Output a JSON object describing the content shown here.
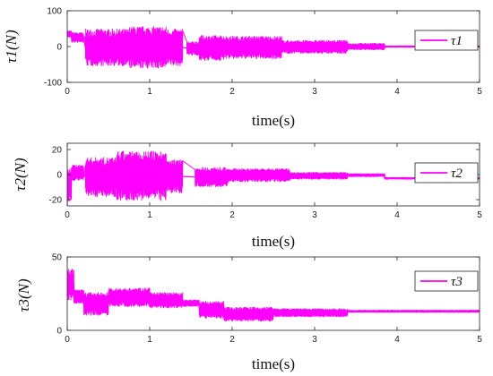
{
  "chart_data": [
    {
      "type": "line",
      "series": [
        {
          "name": "τ1",
          "color": "#ff00ff"
        }
      ],
      "ylabel": "τ1(N)",
      "xlabel": "time(s)",
      "xlim": [
        0,
        5
      ],
      "ylim": [
        -100,
        100
      ],
      "xticks": [
        "0",
        "1",
        "2",
        "3",
        "4",
        "5"
      ],
      "yticks": [
        "100",
        "0",
        "-100"
      ],
      "legend_position": "top-right",
      "grid": false,
      "bursts": [
        {
          "t0": 0.0,
          "t1": 0.05,
          "lo": 25,
          "hi": 45
        },
        {
          "t0": 0.05,
          "t1": 0.2,
          "lo": 10,
          "hi": 40
        },
        {
          "t0": 0.22,
          "t1": 0.75,
          "lo": -55,
          "hi": 50
        },
        {
          "t0": 0.75,
          "t1": 1.2,
          "lo": -62,
          "hi": 57
        },
        {
          "t0": 1.2,
          "t1": 1.4,
          "lo": -55,
          "hi": 50
        },
        {
          "t0": 1.45,
          "t1": 1.6,
          "lo": -25,
          "hi": 15
        },
        {
          "t0": 1.6,
          "t1": 1.9,
          "lo": -40,
          "hi": 32
        },
        {
          "t0": 1.9,
          "t1": 2.6,
          "lo": -35,
          "hi": 30
        },
        {
          "t0": 2.6,
          "t1": 3.4,
          "lo": -20,
          "hi": 18
        },
        {
          "t0": 3.4,
          "t1": 3.85,
          "lo": -10,
          "hi": 10
        },
        {
          "t0": 3.85,
          "t1": 5.0,
          "lo": -3,
          "hi": 3
        }
      ]
    },
    {
      "type": "line",
      "series": [
        {
          "name": "τ2",
          "color": "#ff00ff"
        }
      ],
      "ylabel": "τ2(N)",
      "xlabel": "time(s)",
      "xlim": [
        0,
        5
      ],
      "ylim": [
        -25,
        25
      ],
      "xticks": [
        "0",
        "1",
        "2",
        "3",
        "4",
        "5"
      ],
      "yticks": [
        "20",
        "0",
        "-20"
      ],
      "legend_position": "top-right",
      "grid": false,
      "bursts": [
        {
          "t0": 0.0,
          "t1": 0.05,
          "lo": -22,
          "hi": 5
        },
        {
          "t0": 0.05,
          "t1": 0.2,
          "lo": -5,
          "hi": 8
        },
        {
          "t0": 0.22,
          "t1": 0.6,
          "lo": -18,
          "hi": 14
        },
        {
          "t0": 0.6,
          "t1": 1.2,
          "lo": -21,
          "hi": 19
        },
        {
          "t0": 1.2,
          "t1": 1.4,
          "lo": -15,
          "hi": 12
        },
        {
          "t0": 1.55,
          "t1": 1.95,
          "lo": -10,
          "hi": 6
        },
        {
          "t0": 1.95,
          "t1": 2.7,
          "lo": -6,
          "hi": 5
        },
        {
          "t0": 2.7,
          "t1": 3.4,
          "lo": -4,
          "hi": 2
        },
        {
          "t0": 3.4,
          "t1": 3.85,
          "lo": -2,
          "hi": 1
        },
        {
          "t0": 3.85,
          "t1": 5.0,
          "lo": -4,
          "hi": -2
        }
      ]
    },
    {
      "type": "line",
      "series": [
        {
          "name": "τ3",
          "color": "#ff00ff"
        }
      ],
      "ylabel": "τ3(N)",
      "xlabel": "time(s)",
      "xlim": [
        0,
        5
      ],
      "ylim": [
        0,
        50
      ],
      "xticks": [
        "0",
        "1",
        "2",
        "3",
        "4",
        "5"
      ],
      "yticks": [
        "50",
        "0"
      ],
      "legend_position": "top-right",
      "grid": false,
      "bursts": [
        {
          "t0": 0.0,
          "t1": 0.08,
          "lo": 20,
          "hi": 42
        },
        {
          "t0": 0.08,
          "t1": 0.2,
          "lo": 18,
          "hi": 28
        },
        {
          "t0": 0.2,
          "t1": 0.5,
          "lo": 10,
          "hi": 26
        },
        {
          "t0": 0.5,
          "t1": 1.0,
          "lo": 16,
          "hi": 29
        },
        {
          "t0": 1.0,
          "t1": 1.4,
          "lo": 15,
          "hi": 26
        },
        {
          "t0": 1.4,
          "t1": 1.6,
          "lo": 16,
          "hi": 21
        },
        {
          "t0": 1.6,
          "t1": 1.9,
          "lo": 8,
          "hi": 20
        },
        {
          "t0": 1.9,
          "t1": 2.5,
          "lo": 6,
          "hi": 16
        },
        {
          "t0": 2.5,
          "t1": 3.4,
          "lo": 9,
          "hi": 15
        },
        {
          "t0": 3.4,
          "t1": 5.0,
          "lo": 12,
          "hi": 14
        }
      ]
    }
  ]
}
